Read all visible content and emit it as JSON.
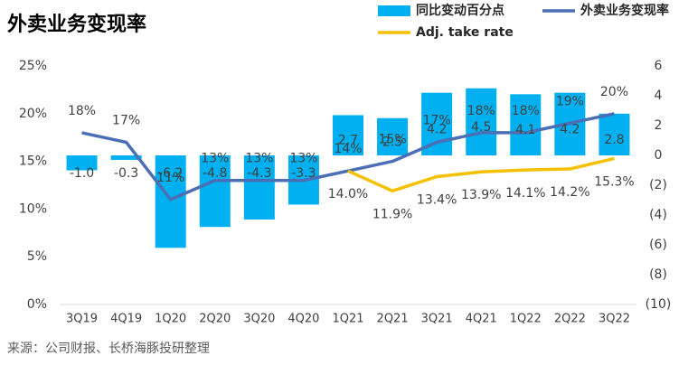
{
  "chart_data": {
    "type": "combo",
    "title": "外卖业务变现率",
    "source": "来源：公司财报、长桥海豚投研整理",
    "categories": [
      "3Q19",
      "4Q19",
      "1Q20",
      "2Q20",
      "3Q20",
      "4Q20",
      "1Q21",
      "2Q21",
      "3Q21",
      "4Q21",
      "1Q22",
      "2Q22",
      "3Q22"
    ],
    "series": [
      {
        "name": "同比变动百分点",
        "type": "bar",
        "axis": "y2",
        "color": "#00b0f0",
        "values": [
          -1.0,
          -0.3,
          -6.2,
          -4.8,
          -4.3,
          -3.3,
          2.7,
          2.5,
          4.2,
          4.5,
          4.1,
          4.2,
          2.8
        ],
        "value_labels": [
          "-1.0",
          "-0.3",
          "-6.2",
          "-4.8",
          "-4.3",
          "-3.3",
          "2.7",
          "2.5",
          "4.2",
          "4.5",
          "4.1",
          "4.2",
          "2.8"
        ]
      },
      {
        "name": "外卖业务变现率",
        "type": "line",
        "color": "#4a6fb5",
        "values": [
          18,
          17,
          11,
          13,
          13,
          13,
          14,
          15,
          17,
          18,
          18,
          19,
          20
        ],
        "value_labels": [
          "18%",
          "17%",
          "11%",
          "13%",
          "13%",
          "13%",
          "14%",
          "15%",
          "17%",
          "18%",
          "18%",
          "19%",
          "20%"
        ]
      },
      {
        "name": "Adj. take rate",
        "type": "line",
        "color": "#f5c000",
        "values": [
          null,
          null,
          null,
          null,
          null,
          null,
          14.0,
          11.9,
          13.4,
          13.9,
          14.1,
          14.2,
          15.3
        ],
        "value_labels": [
          null,
          null,
          null,
          null,
          null,
          null,
          "14.0%",
          "11.9%",
          "13.4%",
          "13.9%",
          "14.1%",
          "14.2%",
          "15.3%"
        ]
      }
    ],
    "ylim": [
      0,
      25
    ],
    "yticks": [
      {
        "value": 0,
        "label": "0%"
      },
      {
        "value": 5,
        "label": "5%"
      },
      {
        "value": 10,
        "label": "10%"
      },
      {
        "value": 15,
        "label": "15%"
      },
      {
        "value": 20,
        "label": "20%"
      },
      {
        "value": 25,
        "label": "25%"
      }
    ],
    "y2lim": [
      -10,
      6
    ],
    "y2ticks": [
      6,
      4,
      2,
      0,
      {
        "value": -2,
        "label": "(2)"
      },
      {
        "value": -4,
        "label": "(4)"
      },
      {
        "value": -6,
        "label": "(6)"
      },
      {
        "value": -8,
        "label": "(8)"
      },
      {
        "value": -10,
        "label": "(10)"
      }
    ],
    "grid": false,
    "legend": "top right"
  }
}
